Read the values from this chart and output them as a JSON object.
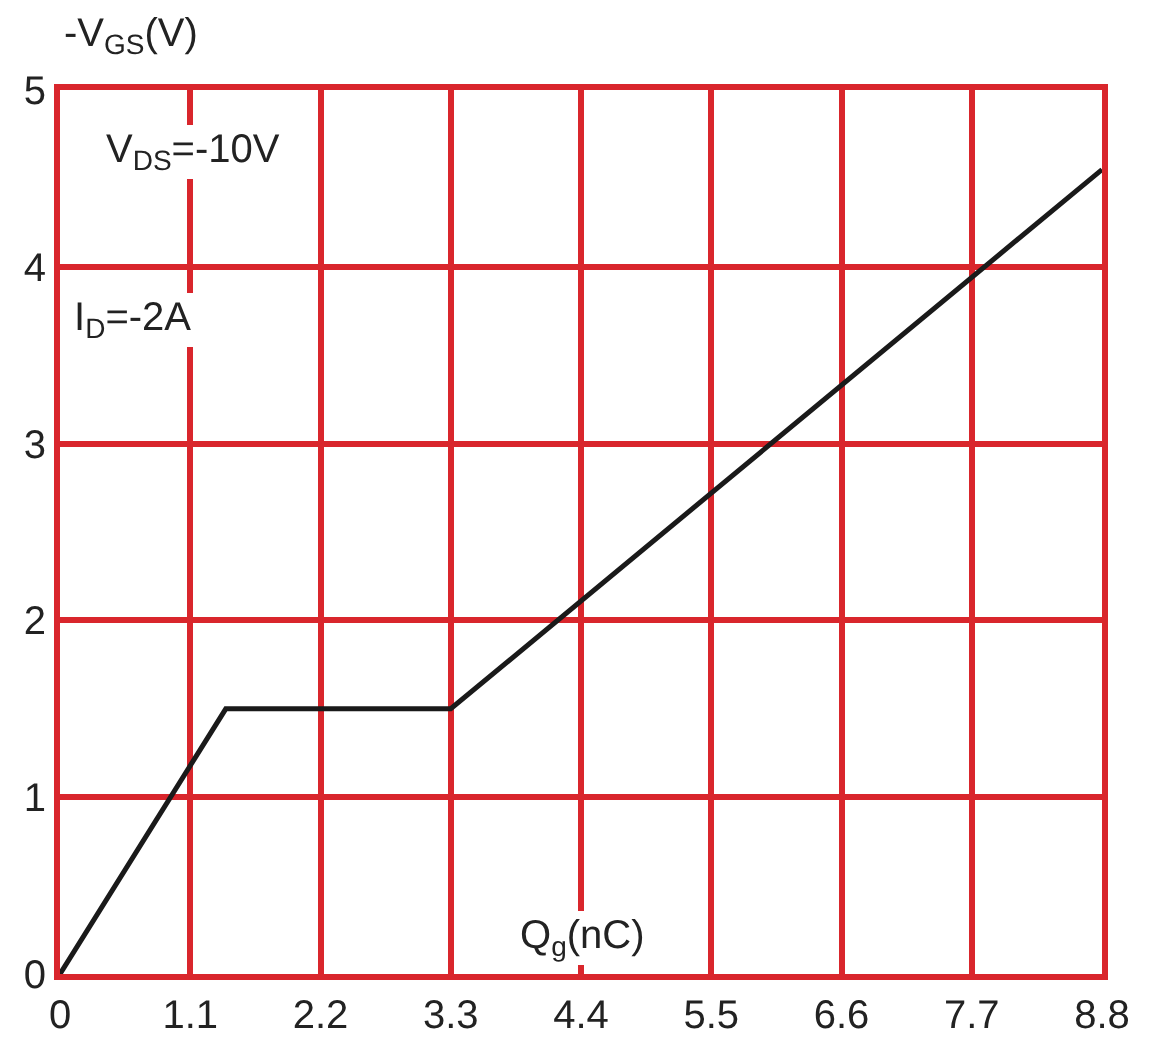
{
  "chart_data": {
    "type": "line",
    "x": [
      0,
      1.4,
      3.3,
      8.8
    ],
    "series": [
      {
        "color": "#1a1a1a",
        "values": [
          0,
          1.5,
          1.5,
          4.55
        ]
      }
    ],
    "xlim": [
      0,
      8.8
    ],
    "xticks": [
      0,
      1.1,
      2.2,
      3.3,
      4.4,
      5.5,
      6.6,
      7.7,
      8.8
    ],
    "ylim": [
      0,
      5
    ],
    "yticks": [
      0,
      1,
      2,
      3,
      4,
      5
    ],
    "xlabel": "Q$_{g}$(nC)",
    "ylabel": "-V$_{GS}$(V)",
    "annotations": [
      "V$_{DS}$=-10V",
      "I$_{D}$=-2A"
    ],
    "grid": true,
    "marker": "none",
    "line_style": "solid"
  }
}
